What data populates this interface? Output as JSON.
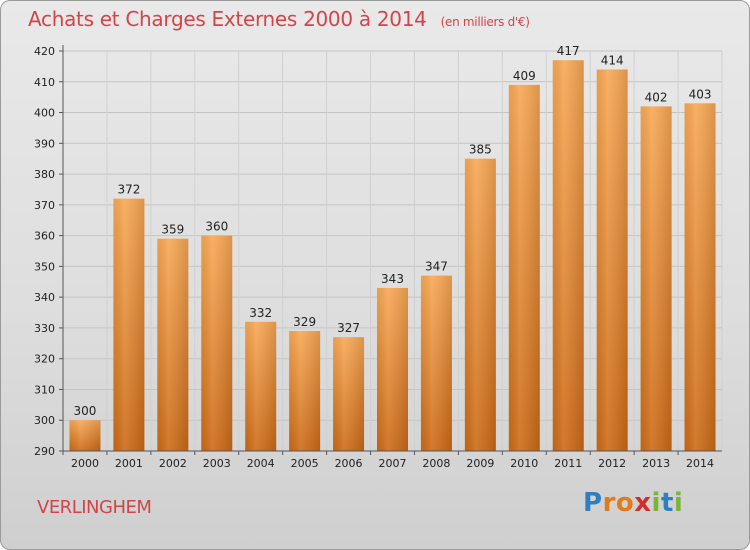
{
  "header": {
    "title": "Achats et Charges Externes 2000 à 2014",
    "unit": "(en milliers d'€)"
  },
  "footer": {
    "commune": "VERLINGHEM",
    "logo_text": "Proxiti",
    "logo_letters": [
      "P",
      "r",
      "o",
      "x",
      "i",
      "t",
      "i"
    ],
    "logo_colors": [
      "#2e7fc1",
      "#e07b1a",
      "#e07b1a",
      "#d12f2f",
      "#7ab536",
      "#2e7fc1",
      "#7ab536"
    ]
  },
  "colors": {
    "bar_light": "#f7a64f",
    "bar_dark": "#cf6c17",
    "title": "#d0454a"
  },
  "chart_data": {
    "type": "bar",
    "title": "Achats et Charges Externes 2000 à 2014",
    "xlabel": "",
    "ylabel": "",
    "categories": [
      "2000",
      "2001",
      "2002",
      "2003",
      "2004",
      "2005",
      "2006",
      "2007",
      "2008",
      "2009",
      "2010",
      "2011",
      "2012",
      "2013",
      "2014"
    ],
    "values": [
      300,
      372,
      359,
      360,
      332,
      329,
      327,
      343,
      347,
      385,
      409,
      417,
      414,
      402,
      403
    ],
    "ylim": [
      290,
      420
    ],
    "yticks": [
      290,
      300,
      310,
      320,
      330,
      340,
      350,
      360,
      370,
      380,
      390,
      400,
      410,
      420
    ],
    "grid": true,
    "legend": "none"
  }
}
